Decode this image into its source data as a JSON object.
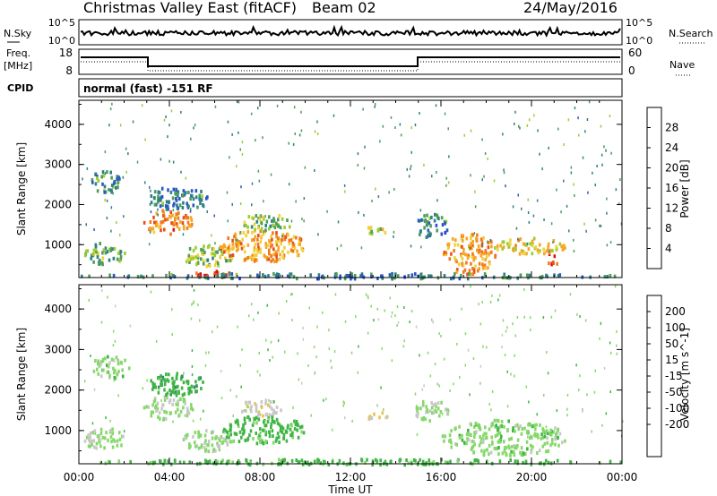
{
  "header": {
    "title_left": "Christmas Valley East (fitACF)",
    "beam_label": "Beam 02",
    "date": "24/May/2016"
  },
  "strips": {
    "nsky": {
      "label": "N.Sky",
      "tick_hi": "10^5",
      "tick_lo": "10^0"
    },
    "nsearch": {
      "label": "N.Search",
      "tick_hi": "10^5",
      "tick_lo": "10^0"
    },
    "freq": {
      "label_line1": "Freq.",
      "label_line2": "[MHz]",
      "tick_hi": "18",
      "tick_lo": "8"
    },
    "nave": {
      "label": "Nave",
      "tick_hi": "60",
      "tick_lo": "0"
    },
    "cpid": {
      "label": "CPID",
      "value": "normal (fast) -151 RF"
    }
  },
  "chart_data": [
    {
      "type": "heatmap",
      "panel": "power",
      "ylabel": "Slant Range [km]",
      "xlabel": "",
      "y_ticks": [
        "1000",
        "2000",
        "3000",
        "4000"
      ],
      "y_values": [
        1000,
        2000,
        3000,
        4000
      ],
      "ylim": [
        180,
        4600
      ],
      "xlim_hours": [
        0,
        24
      ],
      "colorbar": {
        "label": "Power [dB]",
        "ticks": [
          "4",
          "8",
          "12",
          "16",
          "20",
          "24",
          "28"
        ],
        "range": [
          0,
          32
        ],
        "colors": [
          "#1f2bff",
          "#2a56c8",
          "#2f7f86",
          "#4e9d58",
          "#9acd32",
          "#f1d13a",
          "#f7a526",
          "#f07a1c",
          "#e84c1a",
          "#e01010"
        ]
      },
      "regions": [
        {
          "t": [
            0.2,
            2.0
          ],
          "r": [
            550,
            1100
          ],
          "dB": 12
        },
        {
          "t": [
            0.5,
            1.8
          ],
          "r": [
            2300,
            2900
          ],
          "dB": 10
        },
        {
          "t": [
            2.8,
            5.0
          ],
          "r": [
            1300,
            1900
          ],
          "dB": 24
        },
        {
          "t": [
            3.0,
            5.8
          ],
          "r": [
            1900,
            2500
          ],
          "dB": 8
        },
        {
          "t": [
            4.5,
            6.8
          ],
          "r": [
            500,
            1050
          ],
          "dB": 14
        },
        {
          "t": [
            5.0,
            7.0
          ],
          "r": [
            200,
            380
          ],
          "dB": 30
        },
        {
          "t": [
            6.2,
            10.0
          ],
          "r": [
            600,
            1400
          ],
          "dB": 22
        },
        {
          "t": [
            7.0,
            9.5
          ],
          "r": [
            1400,
            1800
          ],
          "dB": 12
        },
        {
          "t": [
            12.5,
            13.6
          ],
          "r": [
            1300,
            1500
          ],
          "dB": 16
        },
        {
          "t": [
            14.8,
            16.3
          ],
          "r": [
            1200,
            1800
          ],
          "dB": 8
        },
        {
          "t": [
            16.0,
            18.5
          ],
          "r": [
            300,
            1300
          ],
          "dB": 22
        },
        {
          "t": [
            18.2,
            21.5
          ],
          "r": [
            800,
            1200
          ],
          "dB": 18
        },
        {
          "t": [
            20.5,
            21.3
          ],
          "r": [
            500,
            900
          ],
          "dB": 26
        },
        {
          "t": [
            0,
            24
          ],
          "r": [
            190,
            320
          ],
          "dB": 8
        }
      ]
    },
    {
      "type": "heatmap",
      "panel": "velocity",
      "ylabel": "Slant Range [km]",
      "xlabel": "Time UT",
      "x_ticks": [
        "00:00",
        "04:00",
        "08:00",
        "12:00",
        "16:00",
        "20:00",
        "00:00"
      ],
      "x_values": [
        0,
        4,
        8,
        12,
        16,
        20,
        24
      ],
      "y_ticks": [
        "1000",
        "2000",
        "3000",
        "4000"
      ],
      "y_values": [
        1000,
        2000,
        3000,
        4000
      ],
      "ylim": [
        180,
        4600
      ],
      "xlim_hours": [
        0,
        24
      ],
      "colorbar": {
        "label": "Velocity [m s^-1]",
        "ticks": [
          "200",
          "100",
          "50",
          "15",
          "-15",
          "-50",
          "-100",
          "-200"
        ],
        "colors": [
          "#1c2bd6",
          "#2a5bd0",
          "#2f8f62",
          "#3fb544",
          "#86d86a",
          "#c8c8c8",
          "#e8c44a",
          "#f0a020",
          "#f06a10",
          "#e02010"
        ]
      },
      "regions": [
        {
          "t": [
            0.2,
            2.0
          ],
          "r": [
            550,
            1100
          ],
          "v": -5
        },
        {
          "t": [
            0.5,
            2.2
          ],
          "r": [
            2300,
            2900
          ],
          "v": 0
        },
        {
          "t": [
            2.8,
            5.0
          ],
          "r": [
            1300,
            1900
          ],
          "v": -5
        },
        {
          "t": [
            3.0,
            5.5
          ],
          "r": [
            1900,
            2500
          ],
          "v": 40
        },
        {
          "t": [
            4.5,
            6.8
          ],
          "r": [
            500,
            1050
          ],
          "v": -5
        },
        {
          "t": [
            6.2,
            10.0
          ],
          "r": [
            700,
            1400
          ],
          "v": 30
        },
        {
          "t": [
            7.0,
            9.0
          ],
          "r": [
            1400,
            1800
          ],
          "v": -40
        },
        {
          "t": [
            12.5,
            13.6
          ],
          "r": [
            1300,
            1500
          ],
          "v": -60
        },
        {
          "t": [
            14.8,
            16.3
          ],
          "r": [
            1200,
            1800
          ],
          "v": -5
        },
        {
          "t": [
            16.0,
            21.5
          ],
          "r": [
            400,
            1300
          ],
          "v": 0
        },
        {
          "t": [
            0,
            24
          ],
          "r": [
            190,
            330
          ],
          "v": 30
        }
      ]
    }
  ]
}
